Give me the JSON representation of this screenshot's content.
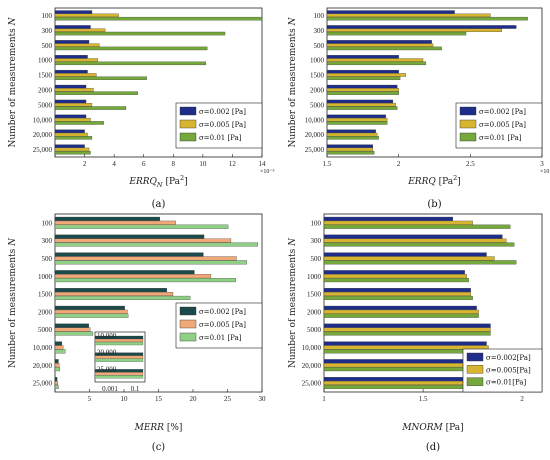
{
  "colors": {
    "s1": "#1f2d8a",
    "s2": "#d8b530",
    "s3": "#74a83a",
    "s1c": "#1c4a4a",
    "s2c": "#f0a878",
    "s3c": "#8fcf86"
  },
  "chart_data": [
    {
      "id": "a",
      "type": "bar",
      "orientation": "horizontal",
      "panel_label": "(a)",
      "ylabel_main": "Number of measurements ",
      "ylabel_var": "N",
      "xlabel_main": "ERRQ",
      "xlabel_sub": "N",
      "xlabel_unit": " [Pa",
      "xlabel_sup": "2",
      "xlabel_end": "]",
      "xlim": [
        0,
        14
      ],
      "xticks": [
        0,
        2,
        4,
        6,
        8,
        10,
        12,
        14
      ],
      "xtick_labels": [
        "",
        "2",
        "4",
        "6",
        "8",
        "10",
        "12",
        "14"
      ],
      "x_exponent": "×10⁻⁵",
      "categories": [
        "100",
        "300",
        "500",
        "1000",
        "1500",
        "2000",
        "5000",
        "10,000",
        "20,000",
        "25,000"
      ],
      "series": [
        {
          "name": "σ=0.002 [Pa]",
          "values": [
            2.5,
            2.4,
            2.3,
            2.2,
            2.2,
            2.1,
            2.1,
            2.1,
            2.0,
            2.0
          ]
        },
        {
          "name": "σ=0.005 [Pa]",
          "values": [
            4.3,
            3.4,
            3.0,
            2.9,
            2.8,
            2.6,
            2.5,
            2.4,
            2.2,
            2.3
          ]
        },
        {
          "name": "σ=0.01   [Pa]",
          "values": [
            14.0,
            11.5,
            10.3,
            10.2,
            6.2,
            5.6,
            4.8,
            3.3,
            2.5,
            2.4
          ]
        }
      ],
      "legend_position": "lower-right"
    },
    {
      "id": "b",
      "type": "bar",
      "orientation": "horizontal",
      "panel_label": "(b)",
      "ylabel_main": "Number of measurements ",
      "ylabel_var": "N",
      "xlabel_main": "ERRQ",
      "xlabel_sub": "",
      "xlabel_unit": "  [Pa",
      "xlabel_sup": "2",
      "xlabel_end": "]",
      "xlim": [
        1.5,
        3
      ],
      "xticks": [
        1.5,
        2,
        2.5,
        3
      ],
      "xtick_labels": [
        "1.5",
        "2",
        "2.5",
        "3"
      ],
      "x_exponent": "×10⁻⁵",
      "categories": [
        "100",
        "300",
        "500",
        "1000",
        "1500",
        "2000",
        "5000",
        "10,000",
        "20,000",
        "25,000"
      ],
      "series": [
        {
          "name": "σ=0.002 [Pa]",
          "values": [
            2.39,
            2.82,
            2.23,
            2.0,
            2.0,
            1.99,
            1.96,
            1.91,
            1.84,
            1.82
          ]
        },
        {
          "name": "σ=0.005 [Pa]",
          "values": [
            2.64,
            2.72,
            2.24,
            2.17,
            2.05,
            2.0,
            1.98,
            1.92,
            1.85,
            1.82
          ]
        },
        {
          "name": "σ=0.01   [Pa]",
          "values": [
            2.9,
            2.47,
            2.3,
            2.19,
            2.01,
            2.0,
            1.99,
            1.92,
            1.86,
            1.83
          ]
        }
      ],
      "legend_position": "lower-right"
    },
    {
      "id": "c",
      "type": "bar",
      "orientation": "horizontal",
      "panel_label": "(c)",
      "ylabel_main": "Number of measurements ",
      "ylabel_var": "N",
      "xlabel_main": "MERR",
      "xlabel_sub": "",
      "xlabel_unit": "   [%]",
      "xlabel_sup": "",
      "xlabel_end": "",
      "xlim": [
        0,
        30
      ],
      "xticks": [
        0,
        5,
        10,
        15,
        20,
        25,
        30
      ],
      "xtick_labels": [
        "",
        "5",
        "10",
        "15",
        "20",
        "25",
        "30"
      ],
      "x_exponent": "",
      "categories": [
        "100",
        "300",
        "500",
        "1000",
        "1500",
        "2000",
        "5000",
        "10,000",
        "20,000",
        "25,000"
      ],
      "series": [
        {
          "name": "σ=0.002 [Pa]",
          "values": [
            15.2,
            21.6,
            21.5,
            20.2,
            16.2,
            10.1,
            4.9,
            1.0,
            0.5,
            0.3
          ]
        },
        {
          "name": "σ=0.005 [Pa]",
          "values": [
            17.5,
            25.5,
            26.3,
            22.6,
            17.1,
            10.5,
            5.1,
            1.2,
            0.6,
            0.4
          ]
        },
        {
          "name": "σ=0.01   [Pa]",
          "values": [
            25.1,
            29.4,
            27.8,
            26.2,
            19.6,
            10.6,
            5.5,
            1.5,
            0.7,
            0.5
          ]
        }
      ],
      "legend_position": "right",
      "inset": {
        "categories": [
          "10,000",
          "20,000",
          "25,000"
        ],
        "xtick_labels": [
          "0.001",
          "0.1"
        ],
        "log_scale": true
      }
    },
    {
      "id": "d",
      "type": "bar",
      "orientation": "horizontal",
      "panel_label": "(d)",
      "ylabel_main": "Number of measurements ",
      "ylabel_var": "N",
      "xlabel_main": "MNORM",
      "xlabel_sub": "",
      "xlabel_unit": "  [Pa]",
      "xlabel_sup": "",
      "xlabel_end": "",
      "xlim": [
        1,
        2.1
      ],
      "xticks": [
        1,
        1.5,
        2
      ],
      "xtick_labels": [
        "1",
        "1.5",
        "2"
      ],
      "x_exponent": "",
      "categories": [
        "100",
        "300",
        "500",
        "1000",
        "1500",
        "2000",
        "5000",
        "10,000",
        "20,000",
        "25,000"
      ],
      "series": [
        {
          "name": "σ=0.002[Pa]",
          "values": [
            1.65,
            1.9,
            1.82,
            1.71,
            1.74,
            1.77,
            1.84,
            1.82,
            1.77,
            1.77
          ]
        },
        {
          "name": "σ=0.005[Pa]",
          "values": [
            1.75,
            1.92,
            1.86,
            1.72,
            1.74,
            1.78,
            1.84,
            1.83,
            1.77,
            1.77
          ]
        },
        {
          "name": "σ=0.01[Pa]",
          "values": [
            1.94,
            1.96,
            1.97,
            1.73,
            1.75,
            1.78,
            1.84,
            1.84,
            1.77,
            1.77
          ]
        }
      ],
      "legend_position": "lower-right"
    }
  ]
}
